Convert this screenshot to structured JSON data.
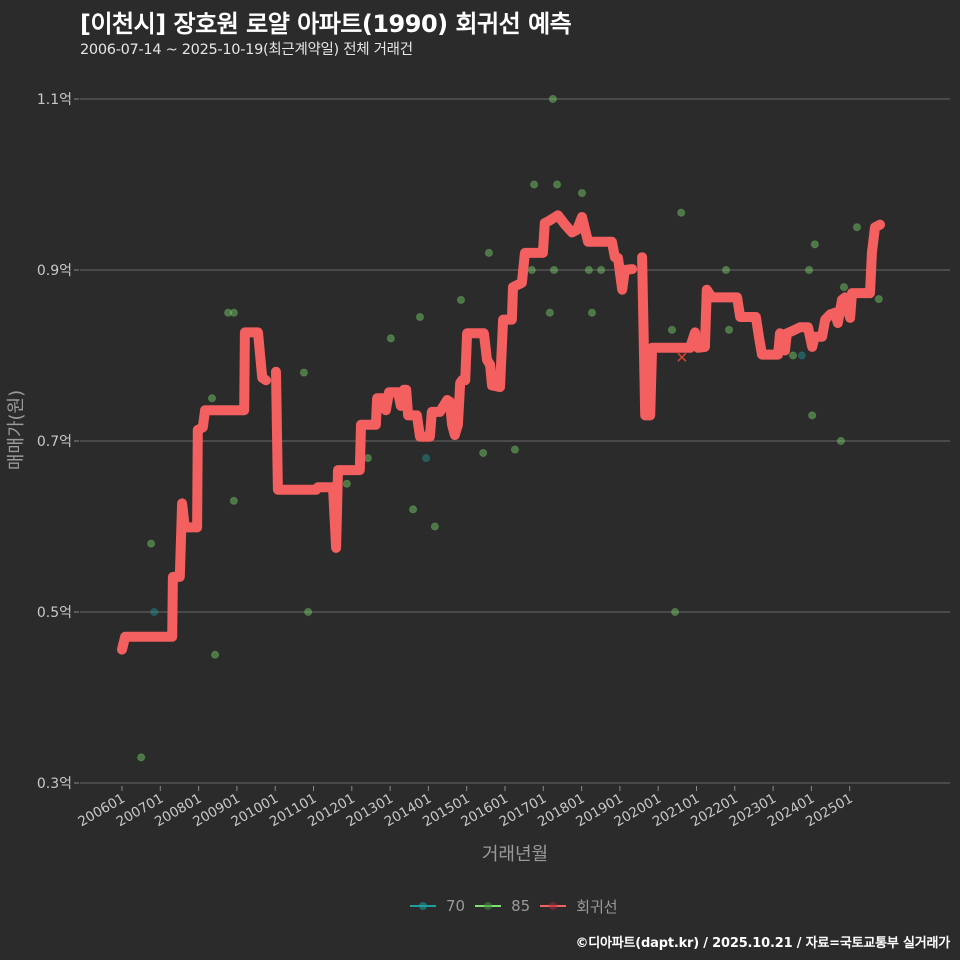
{
  "header": {
    "title": "[이천시] 장호원 로얄 아파트(1990) 회귀선 예측",
    "subtitle": "2006-07-14 ~ 2025-10-19(최근계약일) 전체 거래건"
  },
  "legend": [
    {
      "label": "70",
      "color": "#1f9e9e"
    },
    {
      "label": "85",
      "color": "#7fe06f"
    },
    {
      "label": "회귀선",
      "color": "#f45f5f"
    }
  ],
  "footer": {
    "credit": "©디아파트(dapt.kr) / 2025.10.21 / 자료=국토교통부 실거래가"
  },
  "colors": {
    "background": "#2b2b2b",
    "grid": "#686868",
    "tick_text": "#c8c8c8",
    "axis_title": "#9a9a9a",
    "regression": "#f45f5f",
    "series_70": "#1f9e9e",
    "series_85": "#7fe06f",
    "marker_x": "#d9432f"
  },
  "chart_data": {
    "type": "scatter",
    "title": "[이천시] 장호원 로얄 아파트(1990) 회귀선 예측",
    "subtitle": "2006-07-14 ~ 2025-10-19(최근계약일) 전체 거래건",
    "xlabel": "거래년월",
    "ylabel": "매매가(원)",
    "xlim": [
      2004.9,
      2027.2
    ],
    "ylim": [
      0.3,
      1.1
    ],
    "y_unit": "억",
    "grid": {
      "horizontal": true,
      "vertical": false
    },
    "legend_position": "bottom",
    "y_ticks": [
      {
        "value": 1.1,
        "label": "1.1억"
      },
      {
        "value": 0.9,
        "label": "0.9억"
      },
      {
        "value": 0.7,
        "label": "0.7억"
      },
      {
        "value": 0.5,
        "label": "0.5억"
      },
      {
        "value": 0.3,
        "label": "0.3억"
      }
    ],
    "x_ticks": [
      {
        "value": 2006,
        "label": "200601"
      },
      {
        "value": 2007,
        "label": "200701"
      },
      {
        "value": 2008,
        "label": "200801"
      },
      {
        "value": 2009,
        "label": "200901"
      },
      {
        "value": 2010,
        "label": "201001"
      },
      {
        "value": 2011,
        "label": "201101"
      },
      {
        "value": 2012,
        "label": "201201"
      },
      {
        "value": 2013,
        "label": "201301"
      },
      {
        "value": 2014,
        "label": "201401"
      },
      {
        "value": 2015,
        "label": "201501"
      },
      {
        "value": 2016,
        "label": "201601"
      },
      {
        "value": 2017,
        "label": "201701"
      },
      {
        "value": 2018,
        "label": "201801"
      },
      {
        "value": 2019,
        "label": "201901"
      },
      {
        "value": 2020,
        "label": "202001"
      },
      {
        "value": 2021,
        "label": "202101"
      },
      {
        "value": 2022,
        "label": "202201"
      },
      {
        "value": 2023,
        "label": "202301"
      },
      {
        "value": 2024,
        "label": "202401"
      },
      {
        "value": 2025,
        "label": "202501"
      }
    ],
    "series": [
      {
        "name": "70",
        "type": "scatter",
        "points": [
          [
            2006.84,
            0.5
          ],
          [
            2013.94,
            0.68
          ],
          [
            2023.75,
            0.8
          ]
        ]
      },
      {
        "name": "85",
        "type": "scatter",
        "points": [
          [
            2006.5,
            0.33
          ],
          [
            2006.76,
            0.58
          ],
          [
            2008.35,
            0.75
          ],
          [
            2008.43,
            0.45
          ],
          [
            2008.77,
            0.85
          ],
          [
            2008.92,
            0.85
          ],
          [
            2008.92,
            0.63
          ],
          [
            2010.75,
            0.78
          ],
          [
            2010.86,
            0.5
          ],
          [
            2011.87,
            0.65
          ],
          [
            2012.42,
            0.68
          ],
          [
            2013.02,
            0.82
          ],
          [
            2013.6,
            0.62
          ],
          [
            2013.78,
            0.845
          ],
          [
            2014.17,
            0.6
          ],
          [
            2014.85,
            0.865
          ],
          [
            2015.43,
            0.686
          ],
          [
            2015.58,
            0.92
          ],
          [
            2016.26,
            0.69
          ],
          [
            2016.7,
            0.9
          ],
          [
            2016.76,
            1.0
          ],
          [
            2017.17,
            0.85
          ],
          [
            2017.25,
            1.1
          ],
          [
            2017.28,
            0.9
          ],
          [
            2017.36,
            1.0
          ],
          [
            2018.01,
            0.99
          ],
          [
            2018.19,
            0.9
          ],
          [
            2018.27,
            0.85
          ],
          [
            2018.51,
            0.9
          ],
          [
            2020.36,
            0.83
          ],
          [
            2020.44,
            0.5
          ],
          [
            2020.6,
            0.967
          ],
          [
            2021.77,
            0.9
          ],
          [
            2021.85,
            0.83
          ],
          [
            2023.52,
            0.8
          ],
          [
            2023.94,
            0.9
          ],
          [
            2024.02,
            0.73
          ],
          [
            2024.09,
            0.93
          ],
          [
            2024.77,
            0.7
          ],
          [
            2024.85,
            0.88
          ],
          [
            2025.19,
            0.95
          ],
          [
            2025.76,
            0.866
          ]
        ]
      },
      {
        "name": "회귀선",
        "type": "line",
        "segments": [
          [
            [
              2006.0,
              0.456
            ],
            [
              2006.08,
              0.471
            ],
            [
              2007.31,
              0.471
            ],
            [
              2007.33,
              0.541
            ],
            [
              2007.51,
              0.541
            ],
            [
              2007.57,
              0.627
            ],
            [
              2007.64,
              0.599
            ],
            [
              2007.96,
              0.599
            ],
            [
              2007.98,
              0.713
            ],
            [
              2008.11,
              0.716
            ],
            [
              2008.17,
              0.736
            ],
            [
              2009.19,
              0.736
            ],
            [
              2009.21,
              0.827
            ],
            [
              2009.55,
              0.827
            ],
            [
              2009.66,
              0.774
            ],
            [
              2009.76,
              0.771
            ]
          ],
          [
            [
              2010.02,
              0.781
            ],
            [
              2010.07,
              0.643
            ],
            [
              2011.07,
              0.643
            ],
            [
              2011.12,
              0.646
            ],
            [
              2011.51,
              0.646
            ],
            [
              2011.59,
              0.575
            ],
            [
              2011.64,
              0.666
            ],
            [
              2012.21,
              0.666
            ],
            [
              2012.24,
              0.719
            ],
            [
              2012.63,
              0.719
            ],
            [
              2012.66,
              0.75
            ],
            [
              2012.84,
              0.75
            ],
            [
              2012.89,
              0.736
            ],
            [
              2012.97,
              0.757
            ],
            [
              2013.21,
              0.757
            ],
            [
              2013.28,
              0.741
            ],
            [
              2013.36,
              0.76
            ],
            [
              2013.42,
              0.76
            ],
            [
              2013.47,
              0.73
            ],
            [
              2013.7,
              0.73
            ],
            [
              2013.78,
              0.705
            ],
            [
              2014.04,
              0.705
            ],
            [
              2014.09,
              0.734
            ],
            [
              2014.3,
              0.734
            ],
            [
              2014.49,
              0.748
            ],
            [
              2014.56,
              0.746
            ],
            [
              2014.62,
              0.719
            ],
            [
              2014.69,
              0.707
            ],
            [
              2014.77,
              0.719
            ],
            [
              2014.83,
              0.768
            ],
            [
              2014.88,
              0.771
            ],
            [
              2014.96,
              0.771
            ],
            [
              2015.01,
              0.826
            ],
            [
              2015.45,
              0.826
            ],
            [
              2015.53,
              0.795
            ],
            [
              2015.61,
              0.789
            ],
            [
              2015.66,
              0.765
            ],
            [
              2015.87,
              0.763
            ],
            [
              2015.95,
              0.842
            ],
            [
              2016.18,
              0.842
            ],
            [
              2016.21,
              0.88
            ],
            [
              2016.44,
              0.885
            ],
            [
              2016.52,
              0.92
            ],
            [
              2016.99,
              0.92
            ],
            [
              2017.04,
              0.955
            ],
            [
              2017.17,
              0.958
            ],
            [
              2017.38,
              0.964
            ],
            [
              2017.57,
              0.953
            ],
            [
              2017.75,
              0.944
            ],
            [
              2017.88,
              0.947
            ],
            [
              2018.01,
              0.962
            ],
            [
              2018.17,
              0.933
            ],
            [
              2018.79,
              0.933
            ],
            [
              2018.87,
              0.915
            ],
            [
              2018.95,
              0.914
            ],
            [
              2019.06,
              0.877
            ],
            [
              2019.13,
              0.9
            ],
            [
              2019.32,
              0.901
            ]
          ],
          [
            [
              2019.58,
              0.915
            ],
            [
              2019.66,
              0.73
            ],
            [
              2019.79,
              0.73
            ],
            [
              2019.84,
              0.809
            ],
            [
              2020.83,
              0.809
            ],
            [
              2020.96,
              0.827
            ],
            [
              2021.04,
              0.809
            ],
            [
              2021.22,
              0.81
            ],
            [
              2021.27,
              0.877
            ],
            [
              2021.4,
              0.868
            ],
            [
              2022.06,
              0.868
            ],
            [
              2022.14,
              0.845
            ],
            [
              2022.55,
              0.845
            ],
            [
              2022.63,
              0.822
            ],
            [
              2022.71,
              0.801
            ],
            [
              2023.13,
              0.801
            ],
            [
              2023.18,
              0.826
            ],
            [
              2023.31,
              0.806
            ],
            [
              2023.36,
              0.826
            ],
            [
              2023.52,
              0.829
            ],
            [
              2023.7,
              0.833
            ],
            [
              2023.91,
              0.833
            ],
            [
              2024.02,
              0.81
            ],
            [
              2024.09,
              0.822
            ],
            [
              2024.28,
              0.822
            ],
            [
              2024.36,
              0.842
            ],
            [
              2024.49,
              0.848
            ],
            [
              2024.62,
              0.85
            ],
            [
              2024.69,
              0.838
            ],
            [
              2024.8,
              0.865
            ],
            [
              2024.88,
              0.868
            ],
            [
              2025.01,
              0.844
            ],
            [
              2025.06,
              0.873
            ],
            [
              2025.53,
              0.873
            ],
            [
              2025.58,
              0.92
            ],
            [
              2025.66,
              0.95
            ],
            [
              2025.79,
              0.953
            ]
          ]
        ]
      }
    ],
    "annotations": [
      {
        "shape": "x",
        "x": 2020.62,
        "y": 0.798
      }
    ]
  }
}
